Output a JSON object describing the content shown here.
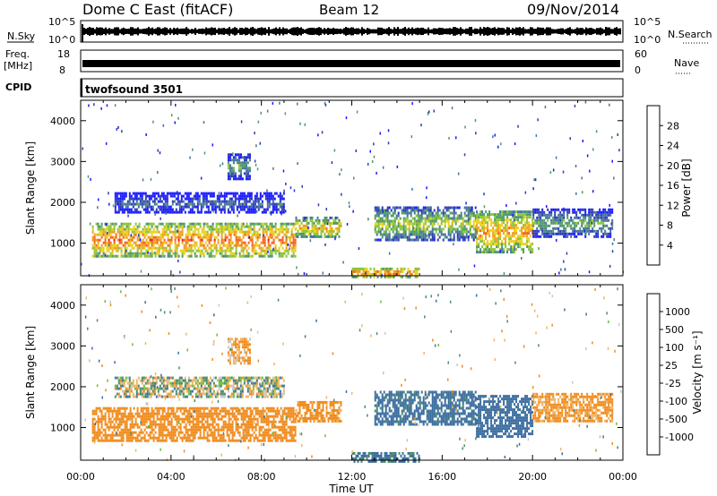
{
  "header": {
    "title": "Dome C East (fitACF)",
    "beam": "Beam 12",
    "date": "09/Nov/2014"
  },
  "top_panels": {
    "nsky_label": "N.Sky",
    "nsky_ticks": [
      "10^5",
      "10^0"
    ],
    "nsearch_label": "N.Search",
    "freq_label_1": "Freq.",
    "freq_label_2": "[MHz]",
    "freq_ticks": [
      "18",
      "8"
    ],
    "nave_label": "Nave",
    "nave_ticks": [
      "60",
      "0"
    ],
    "cpid_label": "CPID",
    "cpid_value": "twofsound 3501"
  },
  "colors": {
    "power_scale": [
      "#1a1aff",
      "#2d3cb4",
      "#46739c",
      "#4e9a6a",
      "#8cc43c",
      "#e8d21e",
      "#f0a01e",
      "#f5641e",
      "#ee1c1c"
    ],
    "velocity_scale": [
      "#2d3cb4",
      "#3c6ea0",
      "#4a8c6e",
      "#6cbe3c",
      "#c8c8c8",
      "#f0b464",
      "#f08c1e",
      "#f55a1e",
      "#ee1c1c"
    ]
  },
  "chart_data": [
    {
      "type": "heatmap",
      "name_field": "power",
      "ylabel": "Slant Range [km]",
      "yticks": [
        "1000",
        "2000",
        "3000",
        "4000"
      ],
      "ylim": [
        200,
        4500
      ],
      "xticks": [
        "00:00",
        "04:00",
        "08:00",
        "12:00",
        "16:00",
        "20:00",
        "00:00"
      ],
      "colorbar_label": "Power [dB]",
      "colorbar_ticks": [
        "4",
        "8",
        "12",
        "16",
        "20",
        "24",
        "28"
      ],
      "colorbar_range": [
        0,
        32
      ],
      "echo_regions": [
        {
          "t_start": 0.5,
          "t_end": 9.5,
          "range_center": 1100,
          "range_width": 800,
          "power": 26
        },
        {
          "t_start": 1.5,
          "t_end": 9.0,
          "range_center": 2000,
          "range_width": 500,
          "power": 9
        },
        {
          "t_start": 6.5,
          "t_end": 7.5,
          "range_center": 2900,
          "range_width": 600,
          "power": 14
        },
        {
          "t_start": 9.5,
          "t_end": 11.5,
          "range_center": 1400,
          "range_width": 500,
          "power": 22
        },
        {
          "t_start": 12.0,
          "t_end": 15.0,
          "range_center": 300,
          "range_width": 200,
          "power": 27
        },
        {
          "t_start": 13.0,
          "t_end": 17.5,
          "range_center": 1500,
          "range_width": 800,
          "power": 18
        },
        {
          "t_start": 17.5,
          "t_end": 20.0,
          "range_center": 1300,
          "range_width": 1000,
          "power": 24
        },
        {
          "t_start": 20.0,
          "t_end": 23.5,
          "range_center": 1500,
          "range_width": 700,
          "power": 14
        }
      ]
    },
    {
      "type": "heatmap",
      "name_field": "velocity",
      "ylabel": "Slant Range [km]",
      "yticks": [
        "1000",
        "2000",
        "3000",
        "4000"
      ],
      "ylim": [
        200,
        4500
      ],
      "xticks": [
        "00:00",
        "04:00",
        "08:00",
        "12:00",
        "16:00",
        "20:00",
        "00:00"
      ],
      "xlabel": "Time UT",
      "colorbar_label": "Velocity [m s⁻¹]",
      "colorbar_ticks": [
        "1000",
        "500",
        "100",
        "25",
        "-25",
        "-100",
        "-500",
        "-1000"
      ],
      "echo_regions": [
        {
          "t_start": 0.5,
          "t_end": 9.5,
          "range_center": 1100,
          "range_width": 800,
          "velocity": -300
        },
        {
          "t_start": 1.5,
          "t_end": 9.0,
          "range_center": 2000,
          "range_width": 500,
          "velocity": 0
        },
        {
          "t_start": 6.5,
          "t_end": 7.5,
          "range_center": 2900,
          "range_width": 600,
          "velocity": -120
        },
        {
          "t_start": 9.5,
          "t_end": 11.5,
          "range_center": 1400,
          "range_width": 500,
          "velocity": -200
        },
        {
          "t_start": 12.0,
          "t_end": 15.0,
          "range_center": 300,
          "range_width": 200,
          "velocity": 150
        },
        {
          "t_start": 13.0,
          "t_end": 17.5,
          "range_center": 1500,
          "range_width": 800,
          "velocity": 200
        },
        {
          "t_start": 17.5,
          "t_end": 20.0,
          "range_center": 1300,
          "range_width": 1000,
          "velocity": 300
        },
        {
          "t_start": 20.0,
          "t_end": 23.5,
          "range_center": 1500,
          "range_width": 700,
          "velocity": -150
        }
      ]
    }
  ]
}
